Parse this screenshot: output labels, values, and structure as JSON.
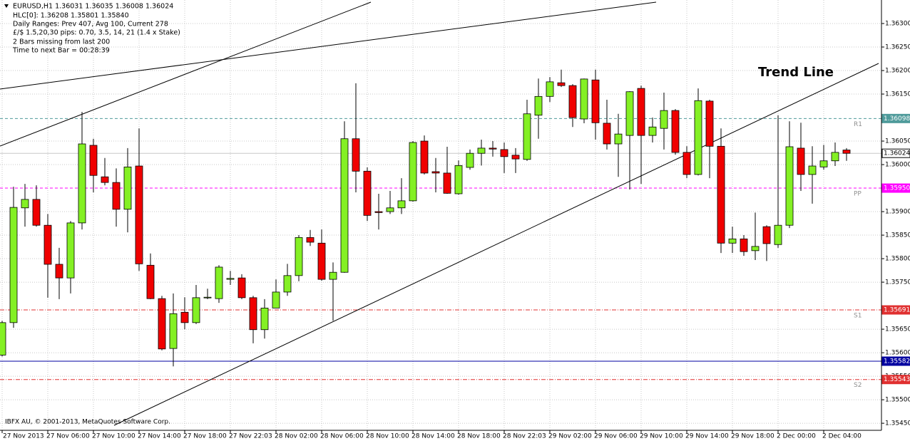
{
  "chart_data": {
    "type": "candlestick",
    "annotations": [
      "EURUSD,H1  1.36031 1.36035 1.36008 1.36024",
      "HLC[0]: 1.36208 1.35801 1.35840",
      "Daily Ranges:  Prev 407,  Avg 100,  Current 278",
      "£/$ 1.5,20,30 pips: 0.70, 3.5, 14, 21 (1.4 x Stake)",
      "2 Bars missing from last 200",
      "Time to next Bar = 00:28:39"
    ],
    "trend_line_label": "Trend Line",
    "copyright": "IBFX AU, © 2001-2013, MetaQuotes Software Corp.",
    "up_color": "#84f024",
    "down_color": "#f00000",
    "grid": true,
    "categories": [
      "27 Nov 2013",
      null,
      null,
      null,
      "27 Nov 06:00",
      null,
      null,
      null,
      "27 Nov 10:00",
      null,
      null,
      null,
      "27 Nov 14:00",
      null,
      null,
      null,
      "27 Nov 18:00",
      null,
      null,
      null,
      "27 Nov 22:03",
      null,
      null,
      null,
      "28 Nov 02:00",
      null,
      null,
      null,
      "28 Nov 06:00",
      null,
      null,
      null,
      "28 Nov 10:00",
      null,
      null,
      null,
      "28 Nov 14:00",
      null,
      null,
      null,
      "28 Nov 18:00",
      null,
      null,
      null,
      "28 Nov 22:03",
      null,
      null,
      null,
      "29 Nov 02:00",
      null,
      null,
      null,
      "29 Nov 06:00",
      null,
      null,
      null,
      "29 Nov 10:00",
      null,
      null,
      null,
      "29 Nov 14:00",
      null,
      null,
      null,
      "29 Nov 18:00",
      null,
      null,
      null,
      "2 Dec 00:00",
      null,
      null,
      null,
      "2 Dec 04:00",
      null,
      null
    ],
    "open": [
      1.35595,
      1.35664,
      1.35908,
      1.35926,
      1.35871,
      1.35788,
      1.35759,
      1.35876,
      1.36041,
      1.35974,
      1.35962,
      1.35905,
      1.35997,
      1.35786,
      1.35715,
      1.35609,
      1.35686,
      1.35664,
      1.35717,
      1.35715,
      1.35756,
      1.35759,
      1.35717,
      1.35649,
      1.35695,
      1.35729,
      1.35764,
      1.35845,
      1.35833,
      1.35756,
      1.35771,
      1.36055,
      1.35986,
      1.359,
      1.359,
      1.35908,
      1.35923,
      1.3605,
      1.35985,
      1.35982,
      1.35938,
      1.35994,
      1.36024,
      1.36035,
      1.36032,
      1.3602,
      1.36011,
      1.36105,
      1.36145,
      1.36174,
      1.36168,
      1.36097,
      1.3618,
      1.36088,
      1.36044,
      1.36062,
      1.36162,
      1.36062,
      1.36077,
      1.36115,
      1.36026,
      1.35979,
      1.36135,
      1.36039,
      1.35833,
      1.35842,
      1.35817,
      1.35868,
      1.3583,
      1.35871,
      1.36035,
      1.35979,
      1.35995,
      1.36008,
      1.36031
    ],
    "high": [
      1.35668,
      1.35953,
      1.35959,
      1.35956,
      1.35895,
      1.35823,
      1.3588,
      1.36112,
      1.36055,
      1.36014,
      1.35992,
      1.36035,
      1.36077,
      1.35811,
      1.35721,
      1.35726,
      1.35718,
      1.35744,
      1.35736,
      1.35786,
      1.35774,
      1.35767,
      1.35721,
      1.35714,
      1.35756,
      1.35789,
      1.3585,
      1.35861,
      1.35862,
      1.35792,
      1.36092,
      1.36173,
      1.35994,
      1.35938,
      1.35944,
      1.35971,
      1.3605,
      1.36062,
      1.36014,
      1.36038,
      1.36009,
      1.36032,
      1.36053,
      1.3605,
      1.36047,
      1.36035,
      1.36138,
      1.36183,
      1.36186,
      1.36202,
      1.36171,
      1.36183,
      1.36202,
      1.36138,
      1.36108,
      1.36156,
      1.36168,
      1.361,
      1.36153,
      1.36118,
      1.36039,
      1.36162,
      1.36138,
      1.36077,
      1.35868,
      1.3585,
      1.35898,
      1.35871,
      1.36105,
      1.36092,
      1.36089,
      1.36039,
      1.36042,
      1.36047,
      1.36035
    ],
    "low": [
      1.35592,
      1.35653,
      1.35868,
      1.35868,
      1.35717,
      1.35714,
      1.35726,
      1.35862,
      1.35941,
      1.35956,
      1.35868,
      1.35856,
      1.35774,
      1.35714,
      1.35605,
      1.35571,
      1.3565,
      1.35661,
      1.35714,
      1.35706,
      1.35744,
      1.35714,
      1.3562,
      1.3563,
      1.35695,
      1.35721,
      1.35752,
      1.35827,
      1.35753,
      1.35668,
      1.3577,
      1.35941,
      1.3588,
      1.35862,
      1.35895,
      1.35895,
      1.35921,
      1.35979,
      1.35941,
      1.35938,
      1.35936,
      1.35989,
      1.35998,
      1.36017,
      1.35982,
      1.35982,
      1.36008,
      1.36055,
      1.36133,
      1.36165,
      1.3608,
      1.36088,
      1.36053,
      1.36032,
      1.35974,
      1.35947,
      1.35959,
      1.36047,
      1.36032,
      1.36021,
      1.35971,
      1.35977,
      1.35971,
      1.35812,
      1.35812,
      1.35806,
      1.35797,
      1.35795,
      1.35823,
      1.35865,
      1.35944,
      1.35917,
      1.35989,
      1.35997,
      1.36008
    ],
    "close": [
      1.35664,
      1.35909,
      1.35926,
      1.35871,
      1.35788,
      1.35759,
      1.35876,
      1.36044,
      1.35977,
      1.35962,
      1.35905,
      1.35995,
      1.35789,
      1.35715,
      1.35608,
      1.35683,
      1.35664,
      1.35717,
      1.35718,
      1.35782,
      1.35758,
      1.35717,
      1.35649,
      1.35695,
      1.35729,
      1.35764,
      1.35845,
      1.35835,
      1.35756,
      1.35771,
      1.36055,
      1.35986,
      1.35892,
      1.35898,
      1.35908,
      1.35923,
      1.36047,
      1.35982,
      1.35982,
      1.35939,
      1.35998,
      1.36024,
      1.36035,
      1.36033,
      1.36017,
      1.36012,
      1.36108,
      1.36145,
      1.36176,
      1.36168,
      1.361,
      1.36182,
      1.36089,
      1.36044,
      1.36065,
      1.36155,
      1.36062,
      1.3608,
      1.36115,
      1.36026,
      1.35979,
      1.36136,
      1.36039,
      1.35833,
      1.35842,
      1.35815,
      1.35826,
      1.35832,
      1.35871,
      1.36038,
      1.35979,
      1.35997,
      1.36008,
      1.36026,
      1.36024
    ],
    "ylim": [
      1.35435,
      1.3635
    ],
    "yticks": [
      {
        "value": 1.363,
        "label": "1.36300"
      },
      {
        "value": 1.3625,
        "label": "1.36250"
      },
      {
        "value": 1.362,
        "label": "1.36200"
      },
      {
        "value": 1.3615,
        "label": "1.36150"
      },
      {
        "value": 1.3605,
        "label": "1.36050"
      },
      {
        "value": 1.36,
        "label": "1.36000"
      },
      {
        "value": 1.359,
        "label": "1.35900"
      },
      {
        "value": 1.3585,
        "label": "1.35850"
      },
      {
        "value": 1.358,
        "label": "1.35800"
      },
      {
        "value": 1.3575,
        "label": "1.35750"
      },
      {
        "value": 1.3565,
        "label": "1.35650"
      },
      {
        "value": 1.356,
        "label": "1.35600"
      },
      {
        "value": 1.3555,
        "label": "1.35550"
      },
      {
        "value": 1.355,
        "label": "1.35500"
      },
      {
        "value": 1.3545,
        "label": "1.35450"
      }
    ],
    "levels": [
      {
        "name": "R1",
        "value": 1.36098,
        "label": "1.36098",
        "color": "#4f9b9b",
        "style": "dashed"
      },
      {
        "value": 1.36024,
        "label": "1.36024",
        "color": "#c8c8c8",
        "style": "solid",
        "tag_color": "#ffffff"
      },
      {
        "name": "PP",
        "value": 1.3595,
        "label": "1.35950",
        "color": "#ff00ff",
        "style": "dashed"
      },
      {
        "name": "S1",
        "value": 1.35691,
        "label": "1.35691",
        "color": "#e03030",
        "style": "dashdot"
      },
      {
        "value": 1.35582,
        "label": "1.35582",
        "color": "#0000a0",
        "style": "solid"
      },
      {
        "name": "S2",
        "value": 1.35543,
        "label": "1.35543",
        "color": "#e03030",
        "style": "dashdot"
      }
    ]
  }
}
